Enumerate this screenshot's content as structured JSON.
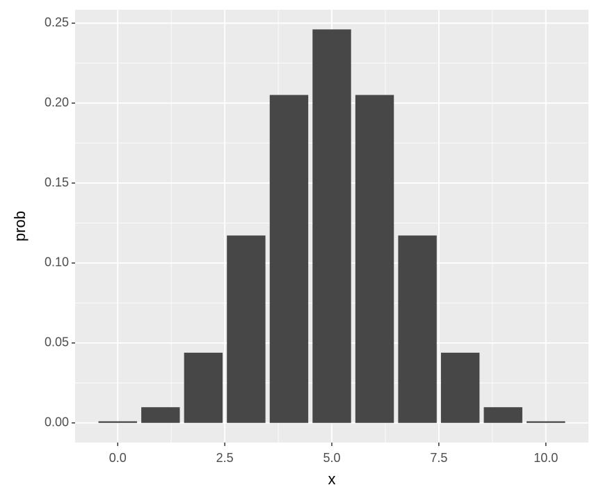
{
  "chart_data": {
    "type": "bar",
    "x_label": "x",
    "y_label": "prob",
    "x": [
      0,
      1,
      2,
      3,
      4,
      5,
      6,
      7,
      8,
      9,
      10
    ],
    "values": [
      0.001,
      0.0098,
      0.0439,
      0.1172,
      0.2051,
      0.2461,
      0.2051,
      0.1172,
      0.0439,
      0.0098,
      0.001
    ],
    "color": "#474747",
    "xlim": [
      -0.995,
      10.995
    ],
    "ylim": [
      -0.0123,
      0.2584
    ],
    "xticks": [
      {
        "value": 0,
        "label": "0.0"
      },
      {
        "value": 2.5,
        "label": "2.5"
      },
      {
        "value": 5,
        "label": "5.0"
      },
      {
        "value": 7.5,
        "label": "7.5"
      },
      {
        "value": 10,
        "label": "10.0"
      }
    ],
    "yticks": [
      {
        "value": 0,
        "label": "0.00"
      },
      {
        "value": 0.05,
        "label": "0.05"
      },
      {
        "value": 0.1,
        "label": "0.10"
      },
      {
        "value": 0.15,
        "label": "0.15"
      },
      {
        "value": 0.2,
        "label": "0.20"
      },
      {
        "value": 0.25,
        "label": "0.25"
      }
    ],
    "xminor": [
      1.25,
      3.75,
      6.25,
      8.75
    ],
    "yminor": [
      0.025,
      0.075,
      0.125,
      0.175,
      0.225
    ],
    "grid": true
  }
}
